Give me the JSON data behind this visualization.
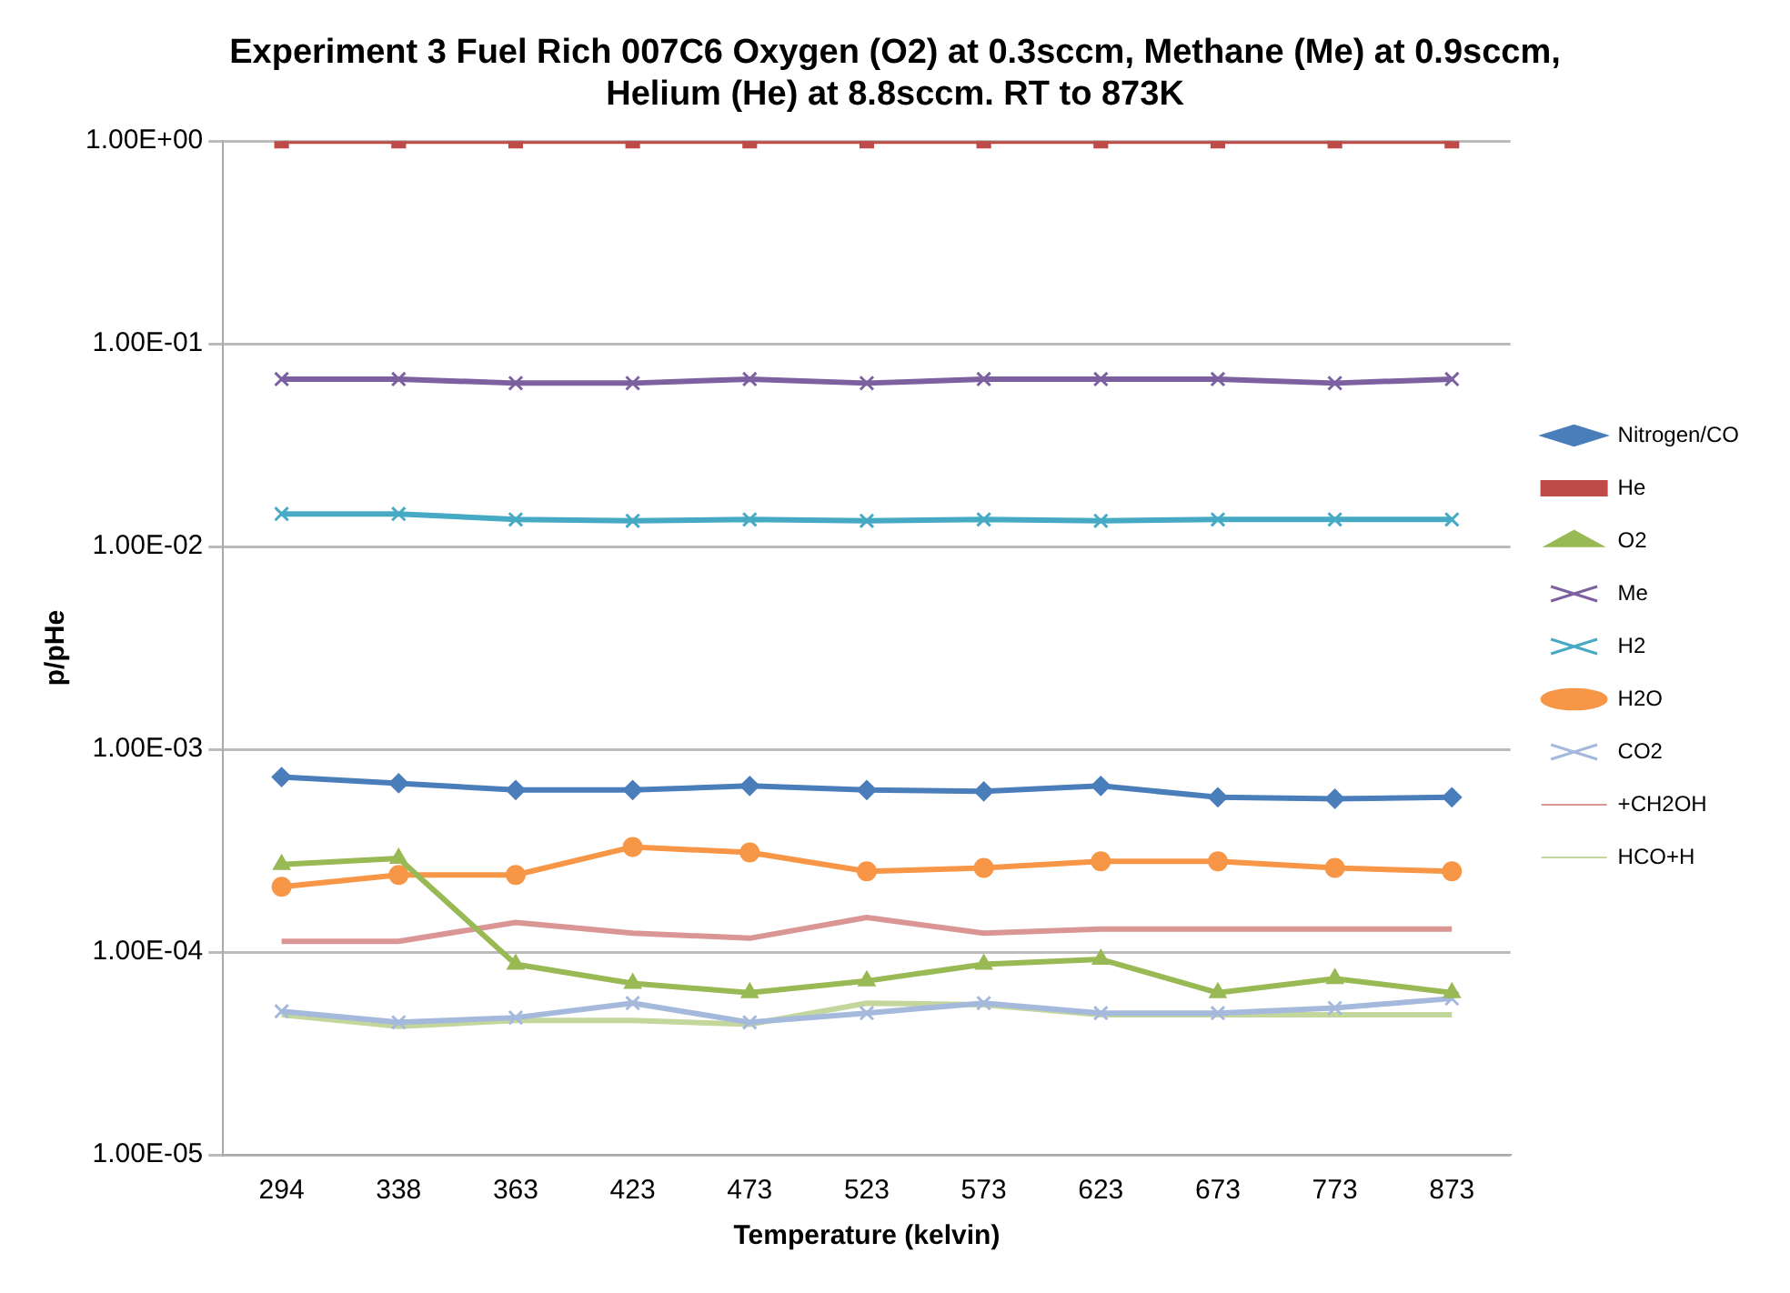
{
  "chart_data": {
    "type": "line",
    "title": "Experiment 3 Fuel Rich 007C6 Oxygen (O2) at 0.3sccm, Methane (Me) at 0.9sccm, Helium (He) at 8.8sccm. RT to 873K",
    "xlabel": "Temperature (kelvin)",
    "ylabel": "p/pHe",
    "categories": [
      "294",
      "338",
      "363",
      "423",
      "473",
      "523",
      "573",
      "623",
      "673",
      "773",
      "873"
    ],
    "log": "y",
    "ylim": [
      1e-05,
      1
    ],
    "yticks": [
      {
        "value": 1e-05,
        "label": "1.00E-05"
      },
      {
        "value": 0.0001,
        "label": "1.00E-04"
      },
      {
        "value": 0.001,
        "label": "1.00E-03"
      },
      {
        "value": 0.01,
        "label": "1.00E-02"
      },
      {
        "value": 0.1,
        "label": "1.00E-01"
      },
      {
        "value": 1,
        "label": "1.00E+00"
      }
    ],
    "grid": "y",
    "legend": "right",
    "line_style": "solid",
    "series": [
      {
        "name": "Nitrogen/CO",
        "color": "#4a7ebb",
        "marker": "diamond",
        "values": [
          0.00073,
          0.00068,
          0.00063,
          0.00063,
          0.00066,
          0.00063,
          0.00062,
          0.00066,
          0.00058,
          0.00057,
          0.00058
        ]
      },
      {
        "name": "He",
        "color": "#be4b48",
        "marker": "square",
        "values": [
          1,
          1,
          1,
          1,
          1,
          1,
          1,
          1,
          1,
          1,
          1
        ]
      },
      {
        "name": "O2",
        "color": "#98b954",
        "marker": "triangle",
        "values": [
          0.00027,
          0.00029,
          8.7e-05,
          7e-05,
          6.3e-05,
          7.2e-05,
          8.7e-05,
          9.2e-05,
          6.3e-05,
          7.4e-05,
          6.3e-05
        ]
      },
      {
        "name": "Me",
        "color": "#7d60a0",
        "marker": "cross",
        "values": [
          0.067,
          0.067,
          0.064,
          0.064,
          0.067,
          0.064,
          0.067,
          0.067,
          0.067,
          0.064,
          0.067
        ]
      },
      {
        "name": "H2",
        "color": "#46aac5",
        "marker": "cross",
        "values": [
          0.0145,
          0.0145,
          0.0136,
          0.0134,
          0.0136,
          0.0134,
          0.0136,
          0.0134,
          0.0136,
          0.0136,
          0.0136
        ]
      },
      {
        "name": "H2O",
        "color": "#f79646",
        "marker": "circle",
        "values": [
          0.00021,
          0.00024,
          0.00024,
          0.00033,
          0.00031,
          0.00025,
          0.00026,
          0.00028,
          0.00028,
          0.00026,
          0.00025
        ]
      },
      {
        "name": "CO2",
        "color": "#a5b9dc",
        "marker": "cross",
        "values": [
          5.1e-05,
          4.5e-05,
          4.75e-05,
          5.6e-05,
          4.5e-05,
          5e-05,
          5.6e-05,
          5e-05,
          5e-05,
          5.3e-05,
          5.9e-05
        ]
      },
      {
        "name": "+CH2OH",
        "color": "#d99694",
        "marker": "none",
        "values": [
          0.000113,
          0.000113,
          0.00014,
          0.000124,
          0.000117,
          0.000148,
          0.000124,
          0.00013,
          0.00013,
          0.00013,
          0.00013
        ]
      },
      {
        "name": "HCO+H",
        "color": "#c3d69b",
        "marker": "none",
        "values": [
          4.9e-05,
          4.3e-05,
          4.6e-05,
          4.6e-05,
          4.4e-05,
          5.6e-05,
          5.5e-05,
          4.9e-05,
          4.9e-05,
          4.9e-05,
          4.9e-05
        ]
      }
    ]
  }
}
